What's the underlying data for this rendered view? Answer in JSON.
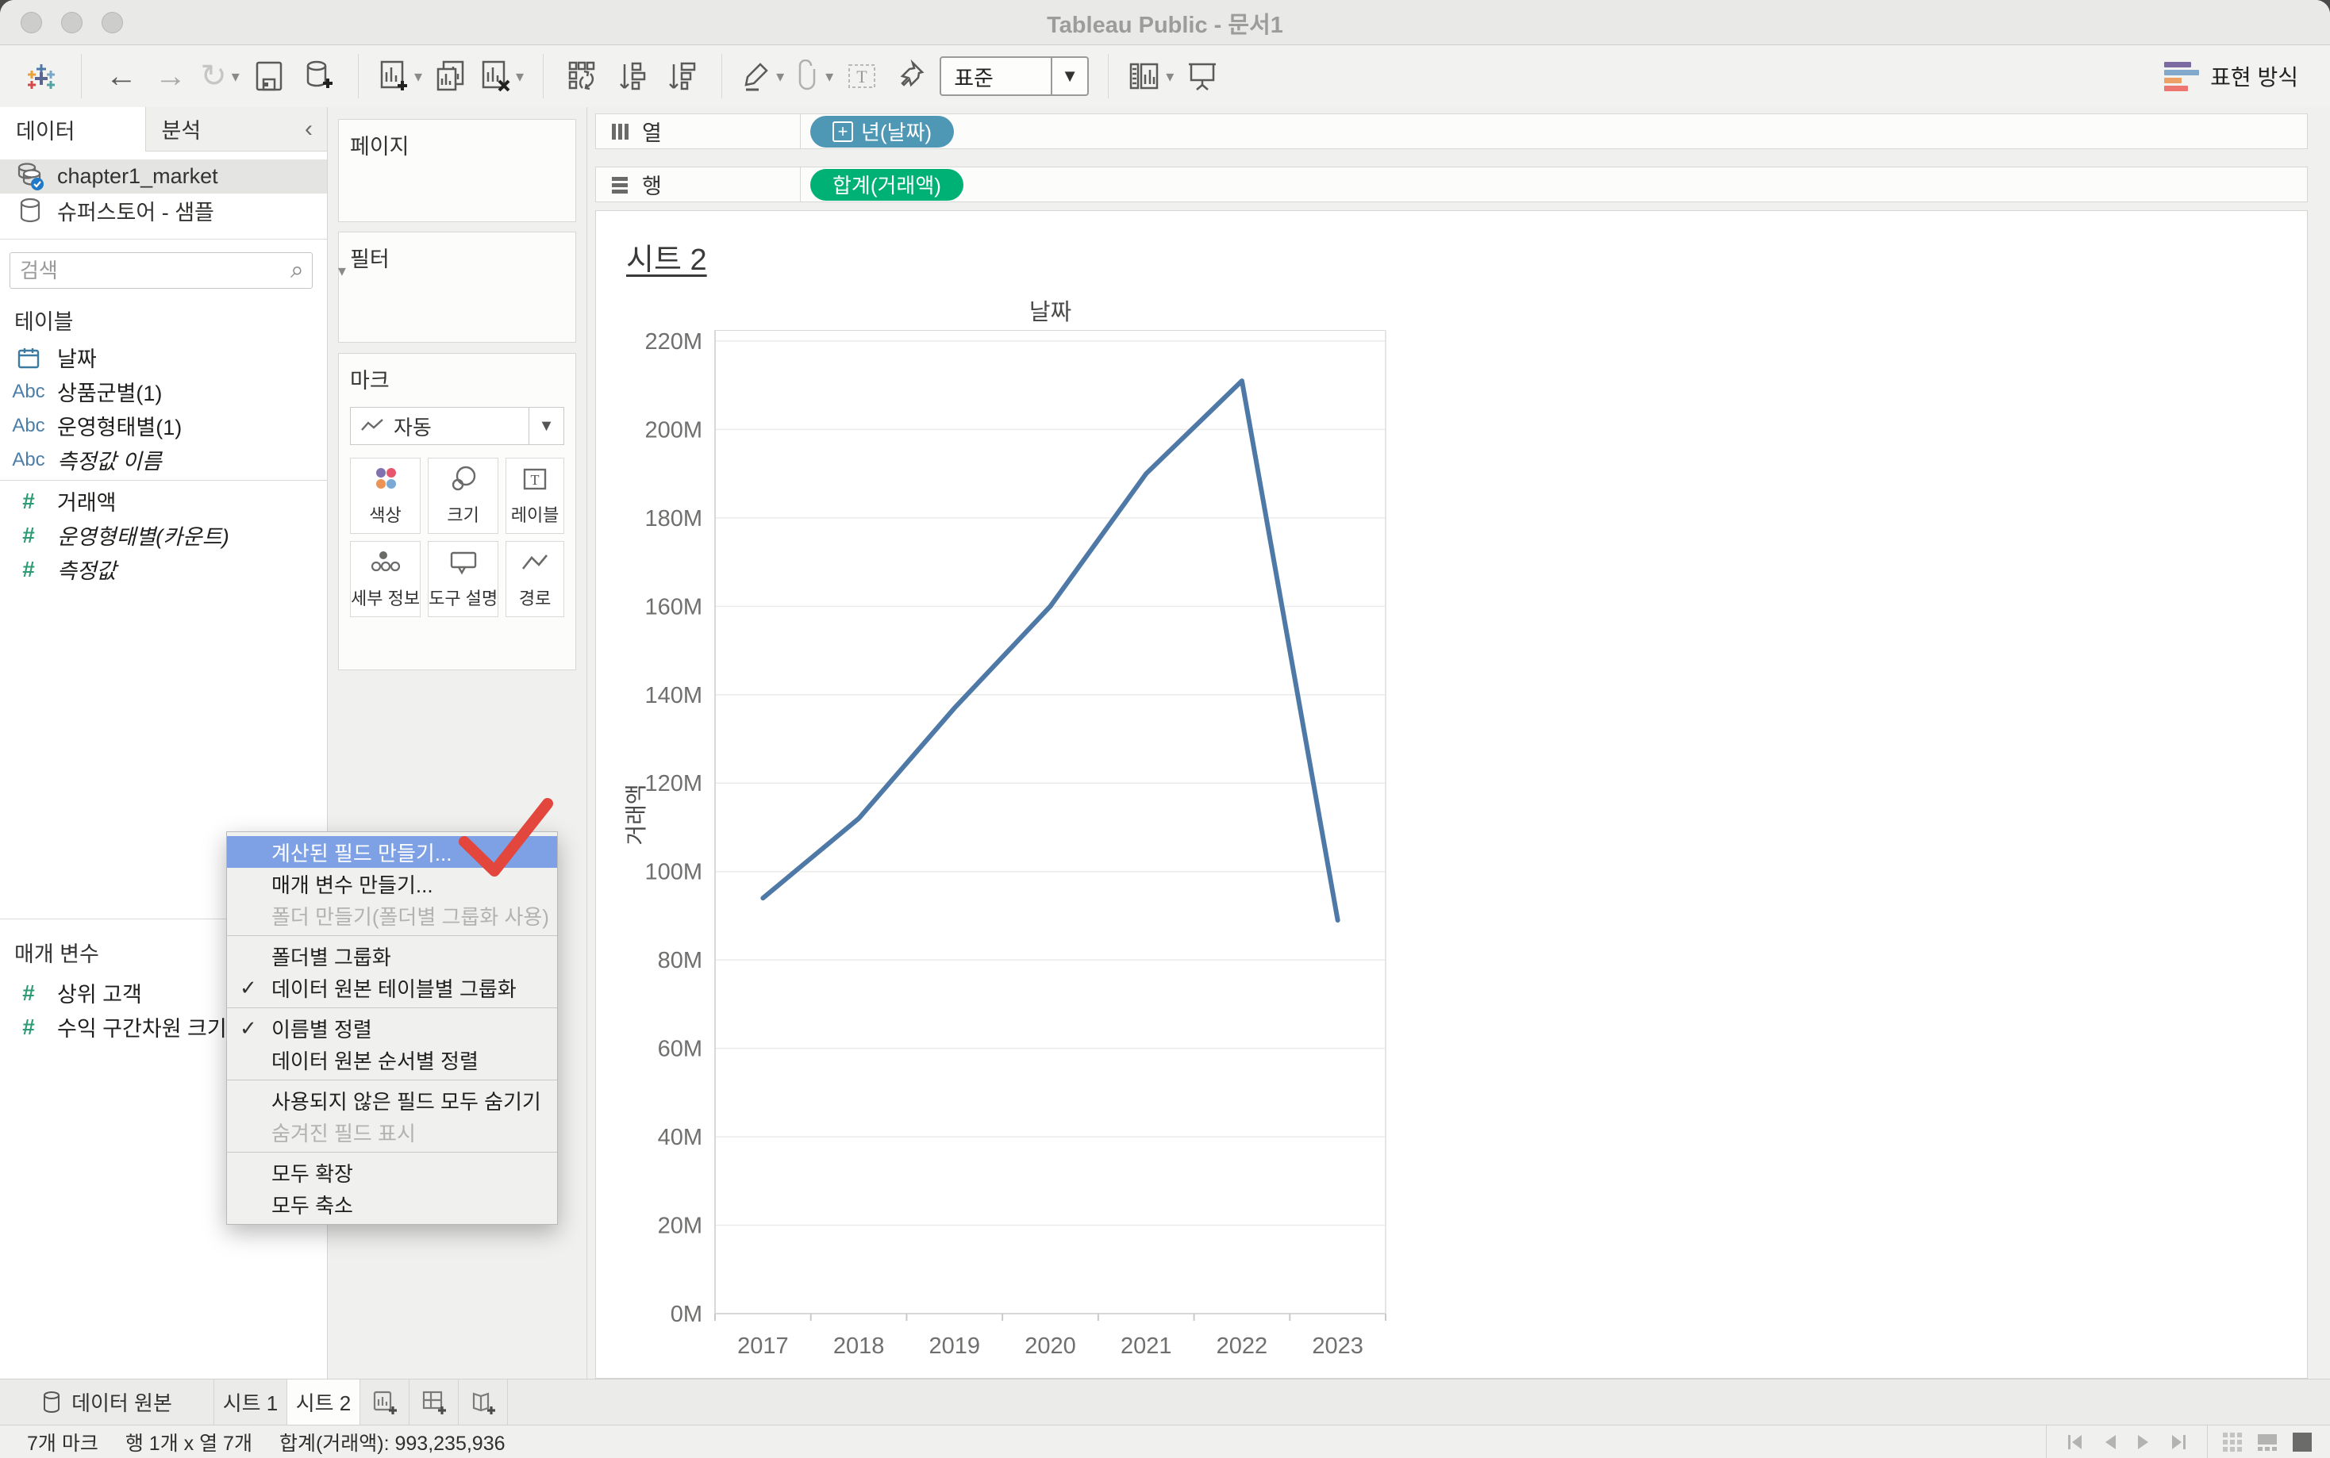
{
  "window": {
    "title": "Tableau Public - 문서1"
  },
  "glyphs": {
    "back": "←",
    "forward": "→",
    "redo": "↻",
    "caret": "▾",
    "chevron_left": "‹",
    "search": "⌕",
    "check": "✓",
    "abc": "Abc",
    "hash": "#",
    "plus": "+",
    "text_t": "T"
  },
  "toolbar": {
    "view_mode": "표준",
    "show_me": "표현 방식"
  },
  "sidebar": {
    "data_tab": "데이터",
    "analytics_tab": "분석",
    "datasources": [
      {
        "name": "chapter1_market"
      },
      {
        "name": "슈퍼스토어 - 샘플"
      }
    ],
    "search_placeholder": "검색",
    "tables_header": "테이블",
    "fields": [
      {
        "label": "날짜"
      },
      {
        "label": "상품군별(1)"
      },
      {
        "label": "운영형태별(1)"
      },
      {
        "label": "측정값 이름"
      },
      {
        "label": "거래액"
      },
      {
        "label": "운영형태별(카운트)"
      },
      {
        "label": "측정값"
      }
    ],
    "parameters_header": "매개 변수",
    "parameters": [
      {
        "label": "상위 고객"
      },
      {
        "label": "수익 구간차원 크기"
      }
    ]
  },
  "cards": {
    "pages_label": "페이지",
    "filters_label": "필터",
    "marks_label": "마크",
    "mark_type": "자동",
    "marks_buttons": [
      {
        "label": "색상"
      },
      {
        "label": "크기"
      },
      {
        "label": "레이블"
      },
      {
        "label": "세부 정보"
      },
      {
        "label": "도구 설명"
      },
      {
        "label": "경로"
      }
    ]
  },
  "shelves": {
    "columns_label": "열",
    "rows_label": "행",
    "columns_pill": "년(날짜)",
    "rows_pill": "합계(거래액)"
  },
  "sheet": {
    "title": "시트 2"
  },
  "context_menu": {
    "groups": [
      {
        "items": [
          {
            "label": "계산된 필드 만들기..."
          },
          {
            "label": "매개 변수 만들기..."
          },
          {
            "label": "폴더 만들기(폴더별 그룹화 사용)"
          }
        ]
      },
      {
        "items": [
          {
            "label": "폴더별 그룹화"
          },
          {
            "label": "데이터 원본 테이블별 그룹화"
          }
        ]
      },
      {
        "items": [
          {
            "label": "이름별 정렬"
          },
          {
            "label": "데이터 원본 순서별 정렬"
          }
        ]
      },
      {
        "items": [
          {
            "label": "사용되지 않은 필드 모두 숨기기"
          },
          {
            "label": "숨겨진 필드 표시"
          }
        ]
      },
      {
        "items": [
          {
            "label": "모두 확장"
          },
          {
            "label": "모두 축소"
          }
        ]
      }
    ]
  },
  "chart_data": {
    "type": "line",
    "title": "날짜",
    "ylabel": "거래액",
    "x_field": "년(날짜)",
    "y_field": "합계(거래액)",
    "categories": [
      "2017",
      "2018",
      "2019",
      "2020",
      "2021",
      "2022",
      "2023"
    ],
    "values_millions": [
      94,
      112,
      137,
      160,
      190,
      211,
      89
    ],
    "total_label": "합계(거래액): 993,235,936",
    "ylim_millions": [
      0,
      222.5
    ],
    "ytick_step_millions": 20,
    "ytick_max_millions": 220,
    "grid": true,
    "legend": false,
    "line_color": "#4e79a7"
  },
  "bottom_tabs": {
    "datasource_tab": "데이터 원본",
    "sheet1_tab": "시트 1",
    "sheet2_tab": "시트 2"
  },
  "status_bar": {
    "marks_count": "7개 마크",
    "grid_size": "행 1개 x 열 7개",
    "total": "합계(거래액): 993,235,936"
  },
  "colors": {
    "columns_pill": "#4e97b5",
    "rows_pill": "#00b176",
    "line": "#4e79a7",
    "menu_highlight": "#7da1e4",
    "annotation_red": "#e2463c"
  }
}
